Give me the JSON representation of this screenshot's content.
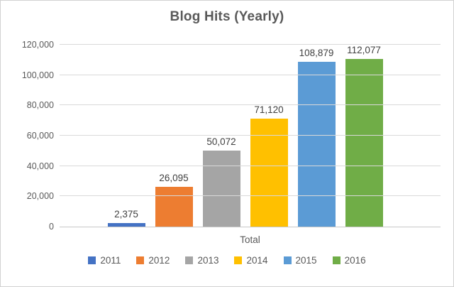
{
  "chart_data": {
    "type": "bar",
    "title": "Blog Hits (Yearly)",
    "categories": [
      "Total"
    ],
    "xlabel": "Total",
    "ylim": [
      0,
      120000
    ],
    "y_tick_interval": 20000,
    "y_tick_labels": [
      "0",
      "20,000",
      "40,000",
      "60,000",
      "80,000",
      "100,000",
      "120,000"
    ],
    "grid": true,
    "legend_position": "bottom",
    "series": [
      {
        "name": "2011",
        "values": [
          2375
        ],
        "data_label": "2,375",
        "color": "#4472C4"
      },
      {
        "name": "2012",
        "values": [
          26095
        ],
        "data_label": "26,095",
        "color": "#ED7D31"
      },
      {
        "name": "2013",
        "values": [
          50072
        ],
        "data_label": "50,072",
        "color": "#A5A5A5"
      },
      {
        "name": "2014",
        "values": [
          71120
        ],
        "data_label": "71,120",
        "color": "#FFC000"
      },
      {
        "name": "2015",
        "values": [
          108879
        ],
        "data_label": "108,879",
        "color": "#5B9BD5"
      },
      {
        "name": "2016",
        "values": [
          112077
        ],
        "data_label": "112,077",
        "color": "#70AD47"
      }
    ]
  }
}
